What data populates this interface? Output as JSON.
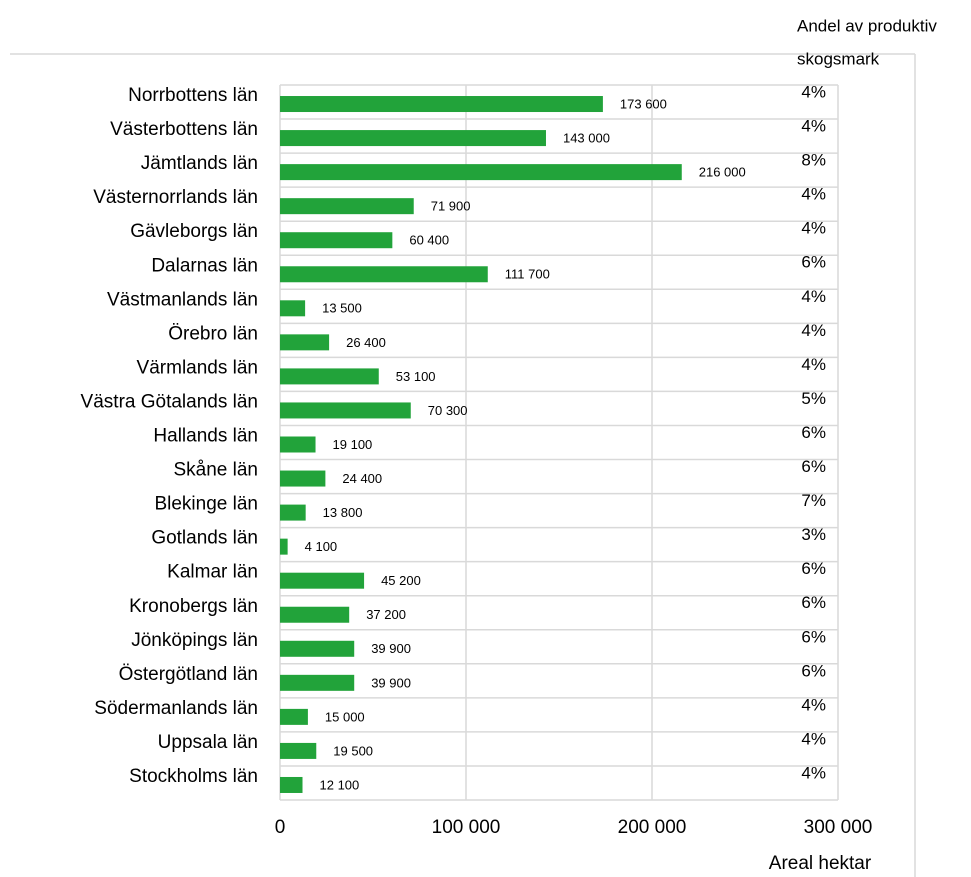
{
  "chart_data": {
    "type": "bar",
    "orientation": "horizontal",
    "categories": [
      "Norrbottens län",
      "Västerbottens län",
      "Jämtlands län",
      "Västernorrlands län",
      "Gävleborgs län",
      "Dalarnas län",
      "Västmanlands län",
      "Örebro län",
      "Värmlands län",
      "Västra Götalands län",
      "Hallands län",
      "Skåne län",
      "Blekinge län",
      "Gotlands län",
      "Kalmar län",
      "Kronobergs län",
      "Jönköpings län",
      "Östergötland län",
      "Södermanlands län",
      "Uppsala län",
      "Stockholms län"
    ],
    "series": [
      {
        "color": "#22a33a",
        "values": [
          173600,
          143000,
          216000,
          71900,
          60400,
          111700,
          13500,
          26400,
          53100,
          70300,
          19100,
          24400,
          13800,
          4100,
          45200,
          37200,
          39900,
          39900,
          15000,
          19500,
          12100
        ],
        "value_labels": [
          "173 600",
          "143 000",
          "216 000",
          "71 900",
          "60 400",
          "111 700",
          "13 500",
          "26 400",
          "53 100",
          "70 300",
          "19 100",
          "24 400",
          "13 800",
          "4 100",
          "45 200",
          "37 200",
          "39 900",
          "39 900",
          "15 000",
          "19 500",
          "12 100"
        ]
      },
      {
        "name": "Andel av produktiv skogsmark",
        "values": [
          4,
          4,
          8,
          4,
          4,
          6,
          4,
          4,
          4,
          5,
          6,
          6,
          7,
          3,
          6,
          6,
          6,
          6,
          4,
          4,
          4
        ],
        "value_labels": [
          "4%",
          "4%",
          "8%",
          "4%",
          "4%",
          "6%",
          "4%",
          "4%",
          "4%",
          "5%",
          "6%",
          "6%",
          "7%",
          "3%",
          "6%",
          "6%",
          "6%",
          "6%",
          "4%",
          "4%",
          "4%"
        ]
      }
    ],
    "xlabel": "Areal hektar",
    "xlim": [
      0,
      300000
    ],
    "xticks": [
      0,
      {
        "value": 100000,
        "label": "100 000"
      },
      {
        "value": 200000,
        "label": "200 000"
      },
      {
        "value": 300000,
        "label": "300 000"
      }
    ],
    "grid": true
  }
}
